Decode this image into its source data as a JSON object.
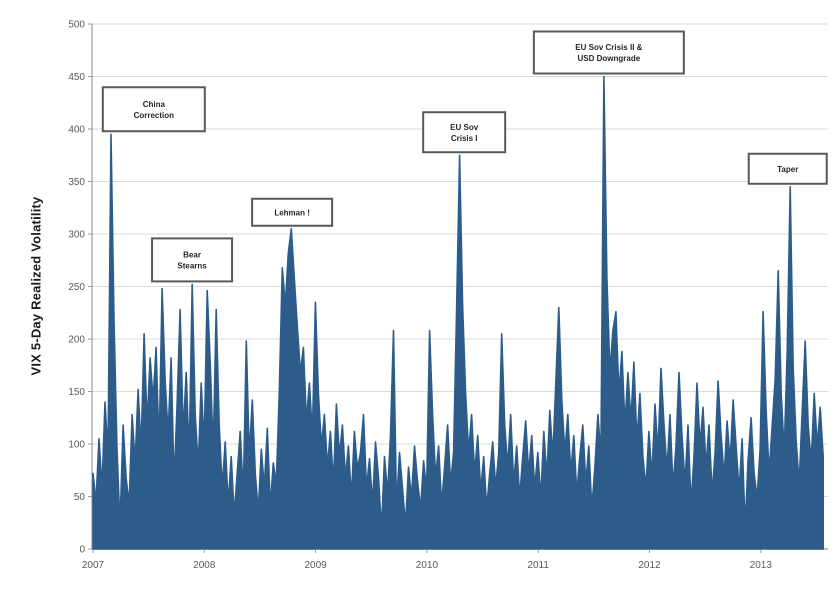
{
  "chart_data": {
    "type": "line",
    "title": "",
    "xlabel": "",
    "ylabel": "VIX 5-Day Realized Volatility",
    "x_tick_labels": [
      "2007",
      "2008",
      "2009",
      "2010",
      "2011",
      "2012",
      "2013"
    ],
    "x_tick_years": [
      2007,
      2008,
      2009,
      2010,
      2011,
      2012,
      2013
    ],
    "y_ticks": [
      0,
      50,
      100,
      150,
      200,
      250,
      300,
      350,
      400,
      450,
      500
    ],
    "ylim": [
      0,
      500
    ],
    "xlim": [
      2007.0,
      2013.6
    ],
    "grid": "horizontal",
    "legend_position": "none",
    "series": [
      {
        "name": "VIX 5-Day Realized Volatility",
        "color": "#2D5C8A",
        "x_start": 2007.0,
        "x_step_years": 0.027,
        "values": [
          72,
          45,
          105,
          58,
          140,
          90,
          395,
          218,
          95,
          22,
          118,
          68,
          42,
          128,
          82,
          152,
          95,
          205,
          118,
          182,
          142,
          192,
          95,
          248,
          162,
          108,
          182,
          62,
          138,
          228,
          110,
          168,
          88,
          252,
          128,
          78,
          158,
          98,
          246,
          178,
          92,
          228,
          118,
          58,
          102,
          42,
          88,
          32,
          72,
          112,
          52,
          198,
          88,
          142,
          72,
          35,
          95,
          58,
          115,
          40,
          82,
          62,
          150,
          268,
          232,
          282,
          305,
          258,
          212,
          168,
          192,
          122,
          158,
          108,
          235,
          148,
          98,
          128,
          78,
          112,
          62,
          138,
          88,
          118,
          68,
          98,
          48,
          112,
          76,
          92,
          128,
          58,
          86,
          42,
          102,
          68,
          18,
          88,
          52,
          108,
          208,
          40,
          92,
          58,
          22,
          78,
          48,
          98,
          64,
          38,
          84,
          55,
          208,
          128,
          68,
          98,
          42,
          78,
          118,
          62,
          92,
          228,
          375,
          232,
          148,
          92,
          128,
          72,
          108,
          55,
          88,
          38,
          72,
          102,
          58,
          92,
          205,
          118,
          78,
          128,
          62,
          98,
          48,
          88,
          122,
          72,
          108,
          58,
          92,
          48,
          112,
          68,
          132,
          88,
          158,
          230,
          142,
          92,
          128,
          72,
          108,
          52,
          88,
          118,
          62,
          98,
          38,
          78,
          128,
          88,
          450,
          258,
          168,
          208,
          226,
          148,
          188,
          118,
          168,
          122,
          178,
          102,
          148,
          88,
          58,
          112,
          68,
          138,
          92,
          172,
          118,
          75,
          128,
          58,
          98,
          168,
          108,
          62,
          118,
          42,
          88,
          158,
          98,
          135,
          78,
          118,
          52,
          92,
          160,
          108,
          68,
          122,
          82,
          142,
          98,
          55,
          105,
          20,
          85,
          125,
          72,
          48,
          95,
          226,
          132,
          72,
          118,
          162,
          265,
          148,
          92,
          188,
          345,
          172,
          102,
          62,
          132,
          198,
          118,
          82,
          148,
          98,
          135,
          88
        ]
      }
    ],
    "annotations": [
      {
        "id": "china-correction",
        "lines": [
          "China",
          "Correction"
        ],
        "t": 2007.16,
        "v": 395
      },
      {
        "id": "bear-stearns",
        "lines": [
          "Bear",
          "Stearns"
        ],
        "t": 2007.89,
        "v": 252
      },
      {
        "id": "lehman",
        "lines": [
          "Lehman !"
        ],
        "t": 2008.78,
        "v": 305
      },
      {
        "id": "eu-sov-crisis-1",
        "lines": [
          "EU Sov",
          "Crisis I"
        ],
        "t": 2010.29,
        "v": 375
      },
      {
        "id": "eu-sov-crisis-2",
        "lines": [
          "EU Sov Crisis II &",
          "USD Downgrade"
        ],
        "t": 2011.59,
        "v": 450
      },
      {
        "id": "taper",
        "lines": [
          "Taper"
        ],
        "t": 2013.26,
        "v": 345
      }
    ]
  },
  "colors": {
    "series": "#2D5C8A",
    "grid": "#DBDBDB",
    "axis": "#9B9B9B",
    "tick_text": "#595959",
    "annotation_border": "#595959",
    "annotation_text": "#262626",
    "background": "#FFFFFF"
  }
}
